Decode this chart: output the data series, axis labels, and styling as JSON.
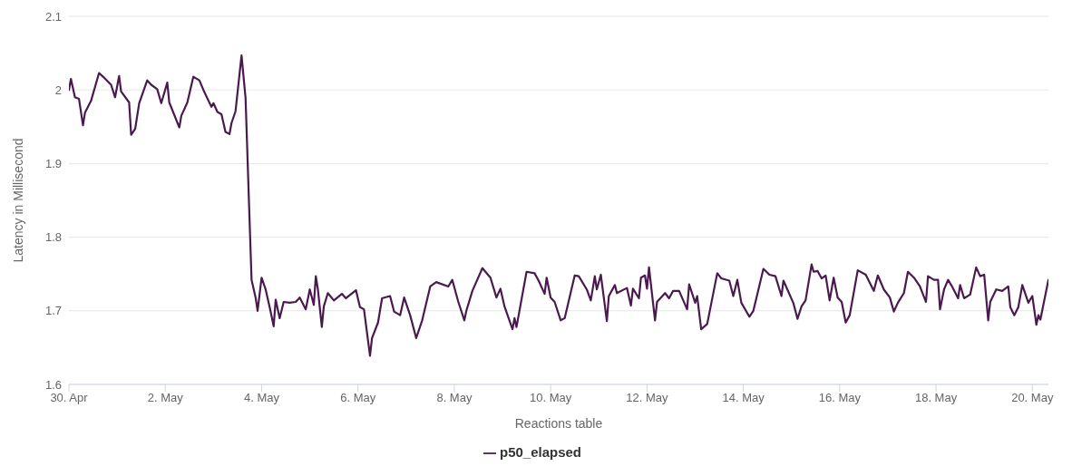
{
  "chart_data": {
    "type": "line",
    "xlabel": "Reactions table",
    "ylabel": "Latency in Millisecond",
    "xlim": [
      "--04-30",
      "--05-20T08:00"
    ],
    "xticks": [
      {
        "value": "--04-30",
        "label": "30. Apr"
      },
      {
        "value": "--05-02",
        "label": "2. May"
      },
      {
        "value": "--05-04",
        "label": "4. May"
      },
      {
        "value": "--05-06",
        "label": "6. May"
      },
      {
        "value": "--05-08",
        "label": "8. May"
      },
      {
        "value": "--05-10",
        "label": "10. May"
      },
      {
        "value": "--05-12",
        "label": "12. May"
      },
      {
        "value": "--05-14",
        "label": "14. May"
      },
      {
        "value": "--05-16",
        "label": "16. May"
      },
      {
        "value": "--05-18",
        "label": "18. May"
      },
      {
        "value": "--05-20",
        "label": "20. May"
      }
    ],
    "ylim": [
      1.6,
      2.1
    ],
    "yticks": [
      1.6,
      1.7,
      1.8,
      1.9,
      2,
      2.1
    ],
    "grid": "y",
    "legend": "bottom",
    "marker": "none",
    "line_style": "solid",
    "x": [
      "--04-30T00:00",
      "--04-30T01:00",
      "--04-30T03:00",
      "--04-30T05:00",
      "--04-30T07:00",
      "--04-30T08:00",
      "--04-30T11:00",
      "--04-30T15:00",
      "--04-30T17:00",
      "--04-30T21:00",
      "--04-30T23:00",
      "--05-01T01:00",
      "--05-01T02:00",
      "--05-01T06:00",
      "--05-01T07:00",
      "--05-01T09:00",
      "--05-01T11:00",
      "--05-01T15:00",
      "--05-01T17:00",
      "--05-01T20:00",
      "--05-01T22:00",
      "--05-02T01:00",
      "--05-02T02:00",
      "--05-02T07:00",
      "--05-02T08:00",
      "--05-02T11:00",
      "--05-02T14:00",
      "--05-02T17:00",
      "--05-02T19:00",
      "--05-02T23:00",
      "--05-03T00:00",
      "--05-03T02:00",
      "--05-03T04:00",
      "--05-03T06:00",
      "--05-03T08:00",
      "--05-03T09:00",
      "--05-03T11:00",
      "--05-03T14:00",
      "--05-03T16:00",
      "--05-03T18:00",
      "--05-03T19:00",
      "--05-03T21:00",
      "--05-03T22:00",
      "--05-04T00:00",
      "--05-04T02:00",
      "--05-04T04:00",
      "--05-04T06:00",
      "--05-04T07:00",
      "--05-04T09:00",
      "--05-04T11:00",
      "--05-04T14:00",
      "--05-04T17:00",
      "--05-04T19:00",
      "--05-04T22:00",
      "--05-05T00:00",
      "--05-05T02:00",
      "--05-05T03:00",
      "--05-05T04:00",
      "--05-05T06:00",
      "--05-05T07:00",
      "--05-05T09:00",
      "--05-05T12:00",
      "--05-05T16:00",
      "--05-05T18:00",
      "--05-05T23:00",
      "--05-06T01:00",
      "--05-06T03:00",
      "--05-06T06:00",
      "--05-06T07:00",
      "--05-06T10:00",
      "--05-06T12:00",
      "--05-06T16:00",
      "--05-06T18:00",
      "--05-06T21:00",
      "--05-06T23:00",
      "--05-07T02:00",
      "--05-07T05:00",
      "--05-07T08:00",
      "--05-07T12:00",
      "--05-07T15:00",
      "--05-07T21:00",
      "--05-07T23:00",
      "--05-08T02:00",
      "--05-08T05:00",
      "--05-08T06:00",
      "--05-08T09:00",
      "--05-08T14:00",
      "--05-08T18:00",
      "--05-08T21:00",
      "--05-08T23:00",
      "--05-09T01:00",
      "--05-09T05:00",
      "--05-09T06:00",
      "--05-09T07:00",
      "--05-09T12:00",
      "--05-09T16:00",
      "--05-09T18:00",
      "--05-09T21:00",
      "--05-09T22:00",
      "--05-10T00:00",
      "--05-10T02:00",
      "--05-10T05:00",
      "--05-10T07:00",
      "--05-10T12:00",
      "--05-10T14:00",
      "--05-10T18:00",
      "--05-10T20:00",
      "--05-10T22:00",
      "--05-10T23:00",
      "--05-11T01:00",
      "--05-11T04:00",
      "--05-11T05:00",
      "--05-11T08:00",
      "--05-11T09:00",
      "--05-11T14:00",
      "--05-11T16:00",
      "--05-11T17:00",
      "--05-11T20:00",
      "--05-11T21:00",
      "--05-11T23:00",
      "--05-12T00:00",
      "--05-12T01:00",
      "--05-12T04:00",
      "--05-12T05:00",
      "--05-12T09:00",
      "--05-12T11:00",
      "--05-12T13:00",
      "--05-12T16:00",
      "--05-12T20:00",
      "--05-12T21:00",
      "--05-13T00:00",
      "--05-13T01:00",
      "--05-13T03:00",
      "--05-13T06:00",
      "--05-13T11:00",
      "--05-13T13:00",
      "--05-13T17:00",
      "--05-13T19:00",
      "--05-13T21:00",
      "--05-13T23:00",
      "--05-14T03:00",
      "--05-14T05:00",
      "--05-14T10:00",
      "--05-14T13:00",
      "--05-14T16:00",
      "--05-14T19:00",
      "--05-14T20:00",
      "--05-15T01:00",
      "--05-15T03:00",
      "--05-15T05:00",
      "--05-15T07:00",
      "--05-15T10:00",
      "--05-15T11:00",
      "--05-15T13:00",
      "--05-15T15:00",
      "--05-15T17:00",
      "--05-15T19:00",
      "--05-15T21:00",
      "--05-15T23:00",
      "--05-16T01:00",
      "--05-16T03:00",
      "--05-16T05:00",
      "--05-16T09:00",
      "--05-16T13:00",
      "--05-16T17:00",
      "--05-16T19:00",
      "--05-16T22:00",
      "--05-17T01:00",
      "--05-17T03:00",
      "--05-17T05:00",
      "--05-17T08:00",
      "--05-17T10:00",
      "--05-17T13:00",
      "--05-17T16:00",
      "--05-17T19:00",
      "--05-17T20:00",
      "--05-17T23:00",
      "--05-18T01:00",
      "--05-18T02:00",
      "--05-18T04:00",
      "--05-18T06:00",
      "--05-18T08:00",
      "--05-18T11:00",
      "--05-18T12:00",
      "--05-18T14:00",
      "--05-18T17:00",
      "--05-18T20:00",
      "--05-18T22:00",
      "--05-19T00:00",
      "--05-19T02:00",
      "--05-19T03:00",
      "--05-19T06:00",
      "--05-19T09:00",
      "--05-19T12:00",
      "--05-19T13:00",
      "--05-19T15:00",
      "--05-19T17:00",
      "--05-19T19:00",
      "--05-19T22:00",
      "--05-20T00:00",
      "--05-20T02:00",
      "--05-20T03:00",
      "--05-20T04:00",
      "--05-20T08:00"
    ],
    "series": [
      {
        "name": "p50_elapsed",
        "color": "#4a1a4f",
        "values": [
          2.0,
          2.015,
          1.99,
          1.988,
          1.952,
          1.969,
          1.985,
          2.023,
          2.018,
          2.007,
          1.99,
          2.019,
          1.998,
          1.983,
          1.939,
          1.947,
          1.982,
          2.013,
          2.007,
          2.001,
          1.982,
          2.01,
          1.983,
          1.949,
          1.965,
          1.983,
          2.018,
          2.013,
          2.0,
          1.977,
          1.982,
          1.97,
          1.967,
          1.943,
          1.94,
          1.955,
          1.971,
          2.047,
          1.989,
          1.823,
          1.742,
          1.718,
          1.7,
          1.745,
          1.729,
          1.705,
          1.679,
          1.715,
          1.69,
          1.712,
          1.711,
          1.712,
          1.718,
          1.702,
          1.729,
          1.708,
          1.747,
          1.73,
          1.678,
          1.706,
          1.724,
          1.714,
          1.723,
          1.717,
          1.728,
          1.705,
          1.702,
          1.639,
          1.663,
          1.684,
          1.717,
          1.72,
          1.699,
          1.694,
          1.718,
          1.694,
          1.663,
          1.687,
          1.733,
          1.739,
          1.733,
          1.742,
          1.712,
          1.687,
          1.7,
          1.727,
          1.758,
          1.745,
          1.718,
          1.73,
          1.706,
          1.675,
          1.69,
          1.678,
          1.753,
          1.751,
          1.741,
          1.723,
          1.745,
          1.718,
          1.712,
          1.687,
          1.69,
          1.748,
          1.747,
          1.729,
          1.714,
          1.747,
          1.729,
          1.749,
          1.686,
          1.72,
          1.735,
          1.724,
          1.731,
          1.707,
          1.73,
          1.717,
          1.745,
          1.748,
          1.73,
          1.759,
          1.687,
          1.712,
          1.724,
          1.717,
          1.727,
          1.727,
          1.702,
          1.736,
          1.711,
          1.72,
          1.675,
          1.682,
          1.751,
          1.744,
          1.741,
          1.72,
          1.742,
          1.711,
          1.692,
          1.7,
          1.757,
          1.749,
          1.747,
          1.72,
          1.741,
          1.71,
          1.689,
          1.706,
          1.714,
          1.763,
          1.753,
          1.754,
          1.744,
          1.748,
          1.714,
          1.745,
          1.718,
          1.712,
          1.684,
          1.694,
          1.755,
          1.749,
          1.727,
          1.748,
          1.729,
          1.718,
          1.699,
          1.711,
          1.724,
          1.753,
          1.745,
          1.733,
          1.712,
          1.747,
          1.742,
          1.742,
          1.702,
          1.729,
          1.742,
          1.733,
          1.717,
          1.735,
          1.717,
          1.722,
          1.759,
          1.747,
          1.749,
          1.687,
          1.712,
          1.729,
          1.727,
          1.733,
          1.705,
          1.694,
          1.705,
          1.735,
          1.711,
          1.72,
          1.681,
          1.694,
          1.688,
          1.742
        ]
      }
    ]
  }
}
